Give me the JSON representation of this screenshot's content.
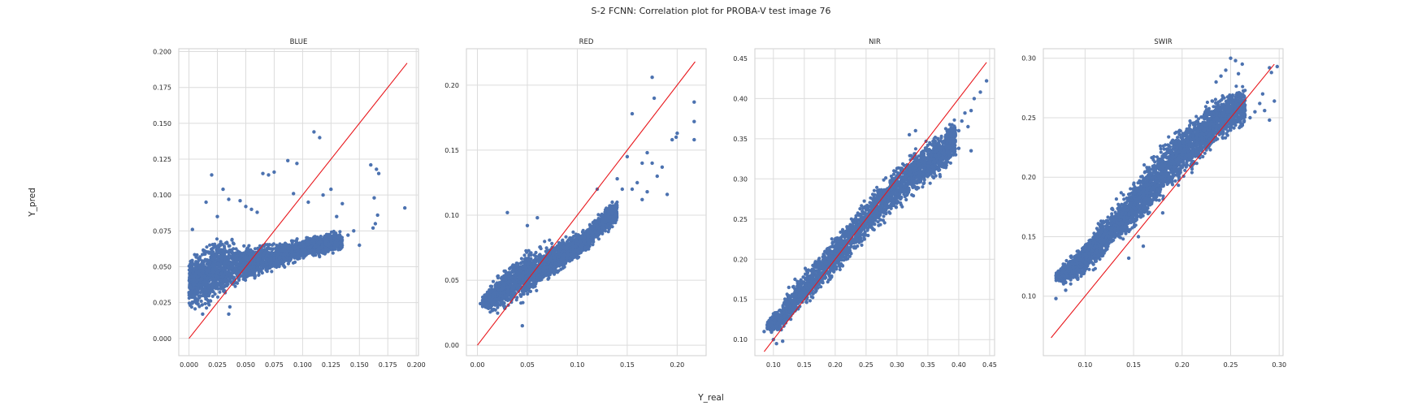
{
  "figure": {
    "suptitle": "S-2 FCNN: Correlation plot for PROBA-V test image 76",
    "xlabel": "Y_real",
    "ylabel": "Y_pred"
  },
  "colors": {
    "points": "#4c72b0",
    "identity_line": "#e8161b",
    "grid": "#dcdcdc",
    "frame": "#cfcfcf"
  },
  "chart_data": [
    {
      "type": "scatter",
      "title": "BLUE",
      "xlim": [
        -0.009,
        0.202
      ],
      "ylim": [
        -0.012,
        0.202
      ],
      "xticks": [
        "0.000",
        "0.025",
        "0.050",
        "0.075",
        "0.100",
        "0.125",
        "0.150",
        "0.175",
        "0.200"
      ],
      "yticks": [
        "0.000",
        "0.025",
        "0.050",
        "0.075",
        "0.100",
        "0.125",
        "0.150",
        "0.175",
        "0.200"
      ],
      "identity_line": [
        [
          0.0,
          0.0
        ],
        [
          0.192,
          0.192
        ]
      ],
      "dense_cloud": [
        {
          "x": 0.0,
          "y_low": 0.018,
          "y_high": 0.06
        },
        {
          "x": 0.01,
          "y_low": 0.016,
          "y_high": 0.066
        },
        {
          "x": 0.02,
          "y_low": 0.019,
          "y_high": 0.072
        },
        {
          "x": 0.03,
          "y_low": 0.024,
          "y_high": 0.074
        },
        {
          "x": 0.045,
          "y_low": 0.032,
          "y_high": 0.07
        },
        {
          "x": 0.06,
          "y_low": 0.04,
          "y_high": 0.068
        },
        {
          "x": 0.075,
          "y_low": 0.046,
          "y_high": 0.068
        },
        {
          "x": 0.09,
          "y_low": 0.05,
          "y_high": 0.07
        },
        {
          "x": 0.105,
          "y_low": 0.055,
          "y_high": 0.072
        },
        {
          "x": 0.12,
          "y_low": 0.056,
          "y_high": 0.076
        },
        {
          "x": 0.135,
          "y_low": 0.06,
          "y_high": 0.076
        }
      ],
      "outliers": [
        [
          0.11,
          0.144
        ],
        [
          0.115,
          0.14
        ],
        [
          0.087,
          0.124
        ],
        [
          0.095,
          0.122
        ],
        [
          0.075,
          0.116
        ],
        [
          0.065,
          0.115
        ],
        [
          0.07,
          0.114
        ],
        [
          0.02,
          0.114
        ],
        [
          0.16,
          0.121
        ],
        [
          0.165,
          0.118
        ],
        [
          0.167,
          0.115
        ],
        [
          0.19,
          0.091
        ],
        [
          0.163,
          0.098
        ],
        [
          0.166,
          0.086
        ],
        [
          0.164,
          0.08
        ],
        [
          0.162,
          0.077
        ],
        [
          0.125,
          0.104
        ],
        [
          0.118,
          0.1
        ],
        [
          0.092,
          0.101
        ],
        [
          0.03,
          0.104
        ],
        [
          0.035,
          0.097
        ],
        [
          0.015,
          0.095
        ],
        [
          0.045,
          0.096
        ],
        [
          0.055,
          0.09
        ],
        [
          0.06,
          0.088
        ],
        [
          0.14,
          0.072
        ],
        [
          0.145,
          0.075
        ],
        [
          0.135,
          0.094
        ],
        [
          0.13,
          0.085
        ],
        [
          0.036,
          0.022
        ],
        [
          0.035,
          0.017
        ],
        [
          0.012,
          0.017
        ],
        [
          0.025,
          0.085
        ],
        [
          0.05,
          0.092
        ],
        [
          0.105,
          0.095
        ],
        [
          0.15,
          0.065
        ],
        [
          0.11,
          0.062
        ],
        [
          0.128,
          0.063
        ],
        [
          0.003,
          0.076
        ]
      ]
    },
    {
      "type": "scatter",
      "title": "RED",
      "xlim": [
        -0.011,
        0.229
      ],
      "ylim": [
        -0.008,
        0.228
      ],
      "xticks": [
        "0.00",
        "0.05",
        "0.10",
        "0.15",
        "0.20"
      ],
      "yticks": [
        "0.00",
        "0.05",
        "0.10",
        "0.15",
        "0.20"
      ],
      "identity_line": [
        [
          0.0,
          0.0
        ],
        [
          0.218,
          0.218
        ]
      ],
      "dense_cloud": [
        {
          "x": 0.005,
          "y_low": 0.026,
          "y_high": 0.04
        },
        {
          "x": 0.02,
          "y_low": 0.022,
          "y_high": 0.055
        },
        {
          "x": 0.035,
          "y_low": 0.028,
          "y_high": 0.068
        },
        {
          "x": 0.05,
          "y_low": 0.033,
          "y_high": 0.076
        },
        {
          "x": 0.065,
          "y_low": 0.042,
          "y_high": 0.08
        },
        {
          "x": 0.08,
          "y_low": 0.052,
          "y_high": 0.083
        },
        {
          "x": 0.095,
          "y_low": 0.062,
          "y_high": 0.088
        },
        {
          "x": 0.11,
          "y_low": 0.07,
          "y_high": 0.092
        },
        {
          "x": 0.125,
          "y_low": 0.082,
          "y_high": 0.105
        },
        {
          "x": 0.14,
          "y_low": 0.092,
          "y_high": 0.115
        }
      ],
      "outliers": [
        [
          0.175,
          0.206
        ],
        [
          0.177,
          0.19
        ],
        [
          0.217,
          0.187
        ],
        [
          0.217,
          0.172
        ],
        [
          0.217,
          0.158
        ],
        [
          0.199,
          0.16
        ],
        [
          0.2,
          0.163
        ],
        [
          0.195,
          0.158
        ],
        [
          0.155,
          0.178
        ],
        [
          0.17,
          0.148
        ],
        [
          0.165,
          0.14
        ],
        [
          0.15,
          0.145
        ],
        [
          0.185,
          0.137
        ],
        [
          0.18,
          0.13
        ],
        [
          0.175,
          0.14
        ],
        [
          0.16,
          0.125
        ],
        [
          0.155,
          0.12
        ],
        [
          0.17,
          0.118
        ],
        [
          0.165,
          0.112
        ],
        [
          0.14,
          0.128
        ],
        [
          0.145,
          0.12
        ],
        [
          0.135,
          0.11
        ],
        [
          0.06,
          0.098
        ],
        [
          0.03,
          0.102
        ],
        [
          0.05,
          0.092
        ],
        [
          0.19,
          0.116
        ],
        [
          0.12,
          0.12
        ],
        [
          0.003,
          0.032
        ],
        [
          0.018,
          0.044
        ],
        [
          0.045,
          0.015
        ]
      ]
    },
    {
      "type": "scatter",
      "title": "NIR",
      "xlim": [
        0.07,
        0.458
      ],
      "ylim": [
        0.08,
        0.462
      ],
      "xticks": [
        "0.10",
        "0.15",
        "0.20",
        "0.25",
        "0.30",
        "0.35",
        "0.40",
        "0.45"
      ],
      "yticks": [
        "0.10",
        "0.15",
        "0.20",
        "0.25",
        "0.30",
        "0.35",
        "0.40",
        "0.45"
      ],
      "identity_line": [
        [
          0.085,
          0.085
        ],
        [
          0.445,
          0.445
        ]
      ],
      "dense_cloud": [
        {
          "x": 0.09,
          "y_low": 0.11,
          "y_high": 0.125
        },
        {
          "x": 0.11,
          "y_low": 0.105,
          "y_high": 0.145
        },
        {
          "x": 0.14,
          "y_low": 0.13,
          "y_high": 0.18
        },
        {
          "x": 0.17,
          "y_low": 0.15,
          "y_high": 0.21
        },
        {
          "x": 0.2,
          "y_low": 0.175,
          "y_high": 0.235
        },
        {
          "x": 0.23,
          "y_low": 0.2,
          "y_high": 0.262
        },
        {
          "x": 0.26,
          "y_low": 0.225,
          "y_high": 0.29
        },
        {
          "x": 0.29,
          "y_low": 0.25,
          "y_high": 0.315
        },
        {
          "x": 0.32,
          "y_low": 0.268,
          "y_high": 0.335
        },
        {
          "x": 0.35,
          "y_low": 0.285,
          "y_high": 0.355
        },
        {
          "x": 0.38,
          "y_low": 0.305,
          "y_high": 0.37
        },
        {
          "x": 0.395,
          "y_low": 0.325,
          "y_high": 0.38
        }
      ],
      "outliers": [
        [
          0.445,
          0.422
        ],
        [
          0.435,
          0.408
        ],
        [
          0.425,
          0.4
        ],
        [
          0.42,
          0.385
        ],
        [
          0.41,
          0.382
        ],
        [
          0.405,
          0.372
        ],
        [
          0.415,
          0.365
        ],
        [
          0.4,
          0.36
        ],
        [
          0.39,
          0.362
        ],
        [
          0.42,
          0.335
        ],
        [
          0.4,
          0.338
        ],
        [
          0.38,
          0.34
        ],
        [
          0.36,
          0.345
        ],
        [
          0.395,
          0.33
        ],
        [
          0.38,
          0.32
        ],
        [
          0.1,
          0.1
        ],
        [
          0.105,
          0.095
        ],
        [
          0.115,
          0.098
        ],
        [
          0.085,
          0.11
        ],
        [
          0.09,
          0.118
        ],
        [
          0.1,
          0.132
        ],
        [
          0.125,
          0.165
        ],
        [
          0.135,
          0.175
        ],
        [
          0.32,
          0.355
        ],
        [
          0.33,
          0.36
        ]
      ]
    },
    {
      "type": "scatter",
      "title": "SWIR",
      "xlim": [
        0.057,
        0.304
      ],
      "ylim": [
        0.05,
        0.308
      ],
      "xticks": [
        "0.10",
        "0.15",
        "0.20",
        "0.25",
        "0.30"
      ],
      "yticks": [
        "0.10",
        "0.15",
        "0.20",
        "0.25",
        "0.30"
      ],
      "identity_line": [
        [
          0.065,
          0.065
        ],
        [
          0.295,
          0.295
        ]
      ],
      "dense_cloud": [
        {
          "x": 0.07,
          "y_low": 0.11,
          "y_high": 0.122
        },
        {
          "x": 0.085,
          "y_low": 0.108,
          "y_high": 0.135
        },
        {
          "x": 0.1,
          "y_low": 0.115,
          "y_high": 0.148
        },
        {
          "x": 0.115,
          "y_low": 0.125,
          "y_high": 0.165
        },
        {
          "x": 0.13,
          "y_low": 0.138,
          "y_high": 0.18
        },
        {
          "x": 0.145,
          "y_low": 0.148,
          "y_high": 0.196
        },
        {
          "x": 0.16,
          "y_low": 0.16,
          "y_high": 0.212
        },
        {
          "x": 0.175,
          "y_low": 0.172,
          "y_high": 0.228
        },
        {
          "x": 0.19,
          "y_low": 0.185,
          "y_high": 0.24
        },
        {
          "x": 0.205,
          "y_low": 0.198,
          "y_high": 0.252
        },
        {
          "x": 0.22,
          "y_low": 0.21,
          "y_high": 0.262
        },
        {
          "x": 0.235,
          "y_low": 0.222,
          "y_high": 0.272
        },
        {
          "x": 0.25,
          "y_low": 0.232,
          "y_high": 0.278
        },
        {
          "x": 0.265,
          "y_low": 0.24,
          "y_high": 0.28
        }
      ],
      "outliers": [
        [
          0.25,
          0.3
        ],
        [
          0.255,
          0.298
        ],
        [
          0.262,
          0.295
        ],
        [
          0.245,
          0.29
        ],
        [
          0.292,
          0.288
        ],
        [
          0.295,
          0.264
        ],
        [
          0.29,
          0.248
        ],
        [
          0.285,
          0.256
        ],
        [
          0.28,
          0.262
        ],
        [
          0.275,
          0.255
        ],
        [
          0.27,
          0.25
        ],
        [
          0.283,
          0.27
        ],
        [
          0.24,
          0.285
        ],
        [
          0.235,
          0.28
        ],
        [
          0.145,
          0.132
        ],
        [
          0.16,
          0.142
        ],
        [
          0.155,
          0.15
        ],
        [
          0.135,
          0.15
        ],
        [
          0.18,
          0.17
        ],
        [
          0.07,
          0.098
        ],
        [
          0.08,
          0.105
        ],
        [
          0.29,
          0.292
        ],
        [
          0.298,
          0.293
        ],
        [
          0.258,
          0.287
        ]
      ]
    }
  ]
}
